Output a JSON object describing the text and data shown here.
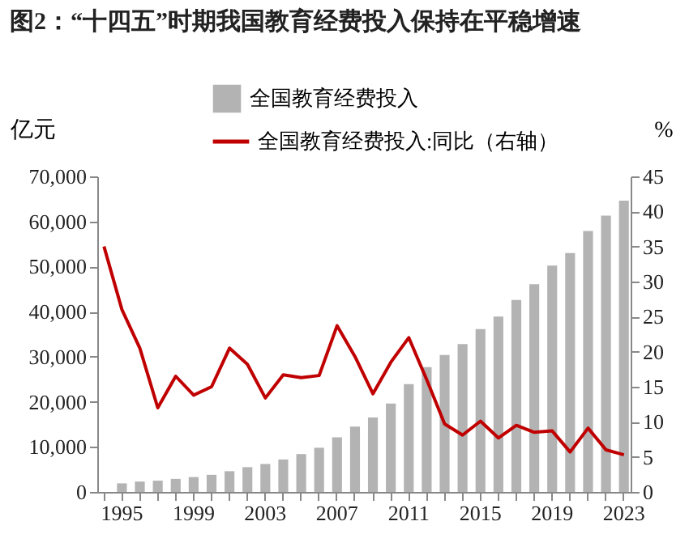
{
  "chart_data": {
    "type": "bar",
    "title": "图2：“十四五”时期我国教育经费投入保持在平稳增速",
    "categories": [
      null,
      "1995",
      null,
      null,
      null,
      "1999",
      null,
      null,
      null,
      "2003",
      null,
      null,
      null,
      "2007",
      null,
      null,
      null,
      "2011",
      null,
      null,
      null,
      "2015",
      null,
      null,
      null,
      "2019",
      null,
      null,
      null,
      "2023"
    ],
    "series": [
      {
        "name": "全国教育经费投入",
        "color": "#b3b3b3",
        "values": [
          null,
          1900,
          2300,
          2500,
          2900,
          3300,
          3800,
          4600,
          5500,
          6200,
          7200,
          8400,
          9800,
          12100,
          14500,
          16500,
          19600,
          23900,
          27700,
          30400,
          32800,
          36100,
          38900,
          42600,
          46100,
          50200,
          53000,
          57900,
          61300,
          64600
        ]
      },
      {
        "name": "全国教育经费投入:同比（右轴）",
        "type": "line",
        "axis": "y2",
        "color": "#c00000",
        "values": [
          35,
          26,
          20.5,
          12,
          16.5,
          13.8,
          15,
          20.5,
          18.2,
          13.4,
          16.7,
          16.3,
          16.6,
          23.7,
          19.3,
          14,
          18.5,
          22,
          16,
          9.7,
          8.1,
          10.1,
          7.7,
          9.5,
          8.5,
          8.7,
          5.7,
          9.1,
          6,
          5.3
        ]
      }
    ],
    "ylabel": "亿元",
    "y2label": "%",
    "ylim": [
      0,
      70000
    ],
    "yticks": [
      0,
      {
        "value": 10000,
        "label": "10,000"
      },
      {
        "value": 20000,
        "label": "20,000"
      },
      {
        "value": 30000,
        "label": "30,000"
      },
      {
        "value": 40000,
        "label": "40,000"
      },
      {
        "value": 50000,
        "label": "50,000"
      },
      {
        "value": 60000,
        "label": "60,000"
      },
      {
        "value": 70000,
        "label": "70,000"
      }
    ],
    "y2lim": [
      0,
      45
    ],
    "y2ticks": [
      0,
      5,
      10,
      15,
      20,
      25,
      30,
      35,
      40,
      45
    ],
    "grid": false,
    "legend": "top"
  }
}
